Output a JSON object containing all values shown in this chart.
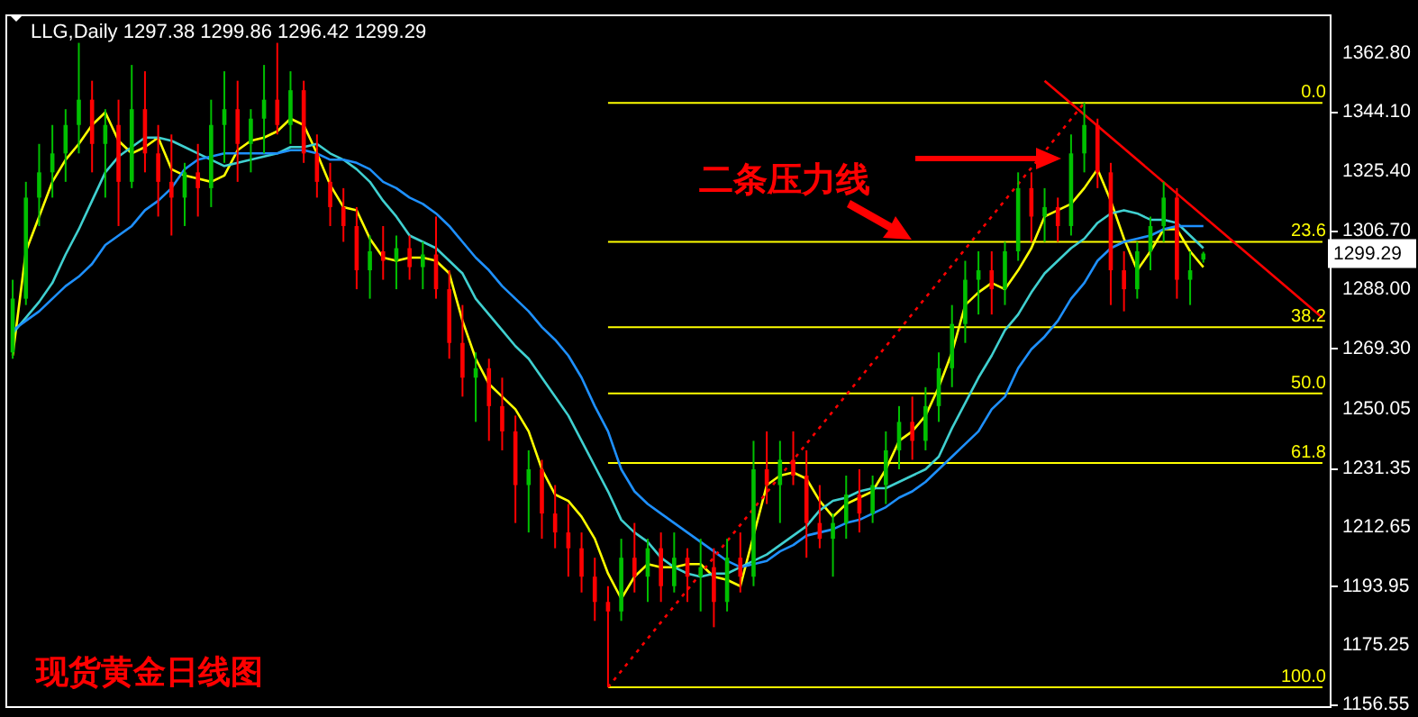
{
  "chart_data": {
    "type": "candlestick",
    "title": "LLG,Daily 1297.38 1299.86 1296.42 1299.29",
    "categories": [
      null,
      null,
      null,
      null,
      null,
      null,
      null,
      null,
      null,
      null,
      null,
      null,
      null,
      null,
      null,
      null,
      null,
      null,
      null,
      null,
      null,
      null,
      null,
      null,
      null,
      null,
      null,
      null,
      null,
      null,
      null,
      null,
      null,
      null,
      null,
      null,
      null,
      null,
      null,
      null,
      null,
      null,
      null,
      null,
      null,
      null,
      null,
      null,
      null,
      null,
      null,
      null,
      null,
      null,
      null,
      null,
      null,
      null,
      null,
      null,
      null,
      null,
      null,
      null,
      null,
      null,
      null,
      null,
      null,
      null,
      null,
      null,
      null,
      null,
      null,
      null,
      null,
      null,
      null,
      null,
      null,
      null,
      null,
      null,
      null,
      null,
      null,
      null,
      null,
      null,
      null,
      null,
      null,
      null,
      null,
      null,
      null,
      null,
      null,
      null
    ],
    "ohlc": [
      [
        1268,
        1291,
        1266,
        1285
      ],
      [
        1285,
        1322,
        1283,
        1317
      ],
      [
        1317,
        1334,
        1308,
        1325
      ],
      [
        1325,
        1340,
        1317,
        1331
      ],
      [
        1331,
        1345,
        1322,
        1340
      ],
      [
        1340,
        1366,
        1331,
        1348
      ],
      [
        1348,
        1354,
        1325,
        1334
      ],
      [
        1334,
        1345,
        1317,
        1340
      ],
      [
        1340,
        1348,
        1308,
        1322
      ],
      [
        1322,
        1359,
        1320,
        1345
      ],
      [
        1345,
        1357,
        1325,
        1331
      ],
      [
        1331,
        1340,
        1311,
        1322
      ],
      [
        1322,
        1337,
        1305,
        1317
      ],
      [
        1317,
        1328,
        1308,
        1325
      ],
      [
        1325,
        1334,
        1311,
        1320
      ],
      [
        1320,
        1348,
        1314,
        1340
      ],
      [
        1340,
        1357,
        1328,
        1345
      ],
      [
        1345,
        1354,
        1322,
        1334
      ],
      [
        1334,
        1345,
        1325,
        1342
      ],
      [
        1342,
        1359,
        1331,
        1348
      ],
      [
        1348,
        1366,
        1337,
        1340
      ],
      [
        1340,
        1357,
        1334,
        1351
      ],
      [
        1351,
        1354,
        1328,
        1331
      ],
      [
        1331,
        1337,
        1317,
        1322
      ],
      [
        1322,
        1328,
        1308,
        1314
      ],
      [
        1314,
        1320,
        1303,
        1308
      ],
      [
        1308,
        1314,
        1288,
        1294
      ],
      [
        1294,
        1305,
        1285,
        1300
      ],
      [
        1300,
        1308,
        1291,
        1297
      ],
      [
        1297,
        1305,
        1288,
        1301
      ],
      [
        1301,
        1305,
        1291,
        1295
      ],
      [
        1295,
        1303,
        1288,
        1299
      ],
      [
        1299,
        1311,
        1285,
        1288
      ],
      [
        1288,
        1294,
        1266,
        1271
      ],
      [
        1271,
        1283,
        1254,
        1260
      ],
      [
        1260,
        1268,
        1246,
        1263
      ],
      [
        1263,
        1266,
        1240,
        1251
      ],
      [
        1251,
        1260,
        1237,
        1243
      ],
      [
        1243,
        1248,
        1214,
        1226
      ],
      [
        1226,
        1237,
        1211,
        1231
      ],
      [
        1231,
        1234,
        1209,
        1217
      ],
      [
        1217,
        1226,
        1206,
        1211
      ],
      [
        1211,
        1220,
        1197,
        1206
      ],
      [
        1206,
        1211,
        1192,
        1197
      ],
      [
        1197,
        1203,
        1183,
        1189
      ],
      [
        1189,
        1194,
        1162,
        1186
      ],
      [
        1186,
        1209,
        1183,
        1203
      ],
      [
        1203,
        1214,
        1192,
        1197
      ],
      [
        1197,
        1209,
        1189,
        1206
      ],
      [
        1206,
        1211,
        1189,
        1194
      ],
      [
        1194,
        1211,
        1192,
        1203
      ],
      [
        1203,
        1206,
        1189,
        1197
      ],
      [
        1197,
        1209,
        1186,
        1200
      ],
      [
        1200,
        1206,
        1181,
        1189
      ],
      [
        1189,
        1209,
        1186,
        1203
      ],
      [
        1203,
        1211,
        1192,
        1197
      ],
      [
        1197,
        1240,
        1194,
        1231
      ],
      [
        1231,
        1243,
        1220,
        1226
      ],
      [
        1226,
        1240,
        1214,
        1234
      ],
      [
        1234,
        1243,
        1226,
        1229
      ],
      [
        1229,
        1237,
        1203,
        1214
      ],
      [
        1214,
        1226,
        1206,
        1209
      ],
      [
        1209,
        1217,
        1197,
        1214
      ],
      [
        1214,
        1229,
        1209,
        1223
      ],
      [
        1223,
        1231,
        1211,
        1217
      ],
      [
        1217,
        1229,
        1214,
        1226
      ],
      [
        1226,
        1243,
        1220,
        1237
      ],
      [
        1237,
        1251,
        1231,
        1246
      ],
      [
        1246,
        1254,
        1234,
        1240
      ],
      [
        1240,
        1257,
        1237,
        1251
      ],
      [
        1251,
        1268,
        1246,
        1263
      ],
      [
        1263,
        1283,
        1257,
        1277
      ],
      [
        1277,
        1297,
        1271,
        1291
      ],
      [
        1291,
        1300,
        1280,
        1294
      ],
      [
        1294,
        1300,
        1280,
        1288
      ],
      [
        1288,
        1303,
        1283,
        1300
      ],
      [
        1300,
        1325,
        1297,
        1320
      ],
      [
        1320,
        1325,
        1303,
        1311
      ],
      [
        1311,
        1320,
        1303,
        1314
      ],
      [
        1314,
        1317,
        1303,
        1308
      ],
      [
        1308,
        1337,
        1305,
        1331
      ],
      [
        1331,
        1347,
        1325,
        1340
      ],
      [
        1340,
        1342,
        1320,
        1325
      ],
      [
        1325,
        1328,
        1283,
        1294
      ],
      [
        1294,
        1300,
        1281,
        1288
      ],
      [
        1288,
        1303,
        1285,
        1300
      ],
      [
        1300,
        1311,
        1294,
        1308
      ],
      [
        1308,
        1322,
        1303,
        1317
      ],
      [
        1317,
        1320,
        1285,
        1291
      ],
      [
        1291,
        1300,
        1283,
        1294
      ],
      [
        1297.38,
        1299.86,
        1296.42,
        1299.29
      ],
      null,
      null,
      null,
      null,
      null,
      null,
      null,
      null,
      null
    ],
    "colors": [
      "#00c000",
      "#00c000",
      "#00c000",
      "#00c000",
      "#00c000",
      "#00c000",
      "#ff0000",
      "#00c000",
      "#ff0000",
      "#00c000",
      "#ff0000",
      "#ff0000",
      "#ff0000",
      "#00c000",
      "#ff0000",
      "#00c000",
      "#00c000",
      "#ff0000",
      "#00c000",
      "#00c000",
      "#ff0000",
      "#00c000",
      "#ff0000",
      "#ff0000",
      "#ff0000",
      "#ff0000",
      "#ff0000",
      "#00c000",
      "#ff0000",
      "#00c000",
      "#ff0000",
      "#00c000",
      "#ff0000",
      "#ff0000",
      "#ff0000",
      "#00c000",
      "#ff0000",
      "#ff0000",
      "#ff0000",
      "#00c000",
      "#ff0000",
      "#ff0000",
      "#ff0000",
      "#ff0000",
      "#ff0000",
      "#ff0000",
      "#00c000",
      "#ff0000",
      "#00c000",
      "#ff0000",
      "#00c000",
      "#ff0000",
      "#00c000",
      "#ff0000",
      "#00c000",
      "#ff0000",
      "#00c000",
      "#ff0000",
      "#00c000",
      "#ff0000",
      "#ff0000",
      "#ff0000",
      "#00c000",
      "#00c000",
      "#ff0000",
      "#00c000",
      "#00c000",
      "#00c000",
      "#ff0000",
      "#00c000",
      "#00c000",
      "#00c000",
      "#00c000",
      "#00c000",
      "#ff0000",
      "#00c000",
      "#00c000",
      "#ff0000",
      "#00c000",
      "#ff0000",
      "#00c000",
      "#00c000",
      "#ff0000",
      "#ff0000",
      "#ff0000",
      "#00c000",
      "#00c000",
      "#00c000",
      "#ff0000",
      "#00c000",
      "#00c000",
      null,
      null,
      null,
      null,
      null,
      null,
      null,
      null,
      null
    ],
    "series": [
      {
        "type": "line",
        "color": "#ffff00",
        "values": [
          1267,
          1300,
          1311,
          1322,
          1329,
          1334,
          1340,
          1344,
          1335,
          1331,
          1333,
          1336,
          1326,
          1324,
          1323,
          1322,
          1324,
          1332,
          1335,
          1336,
          1338,
          1342,
          1340,
          1331,
          1321,
          1314,
          1313,
          1304,
          1298,
          1297,
          1298,
          1298,
          1297,
          1293,
          1278,
          1266,
          1258,
          1254,
          1250,
          1243,
          1231,
          1223,
          1221,
          1216,
          1209,
          1198,
          1190,
          1197,
          1201,
          1200,
          1200,
          1201,
          1201,
          1197,
          1196,
          1194,
          1210,
          1226,
          1229,
          1230,
          1228,
          1221,
          1216,
          1220,
          1222,
          1224,
          1231,
          1240,
          1243,
          1248,
          1257,
          1268,
          1283,
          1287,
          1290,
          1288,
          1294,
          1301,
          1311,
          1313,
          1315,
          1320,
          1326,
          1316,
          1304,
          1294,
          1300,
          1307,
          1307,
          1300,
          1295,
          null,
          null,
          null,
          null,
          null,
          null,
          null,
          null,
          null
        ]
      },
      {
        "type": "line",
        "color": "#40d0d0",
        "values": [
          1274,
          1279,
          1284,
          1290,
          1299,
          1307,
          1316,
          1325,
          1330,
          1333,
          1336,
          1336,
          1335,
          1333,
          1331,
          1329,
          1327,
          1328,
          1329,
          1330,
          1331,
          1333,
          1333,
          1334,
          1331,
          1329,
          1326,
          1322,
          1316,
          1311,
          1305,
          1303,
          1301,
          1297,
          1293,
          1285,
          1280,
          1275,
          1270,
          1266,
          1260,
          1254,
          1248,
          1240,
          1232,
          1224,
          1215,
          1211,
          1208,
          1203,
          1200,
          1198,
          1197,
          1198,
          1198,
          1200,
          1202,
          1204,
          1207,
          1210,
          1213,
          1218,
          1221,
          1222,
          1224,
          1225,
          1225,
          1227,
          1229,
          1231,
          1235,
          1244,
          1252,
          1260,
          1267,
          1275,
          1280,
          1287,
          1293,
          1297,
          1301,
          1304,
          1309,
          1312,
          1313,
          1312,
          1310,
          1310,
          1309,
          1305,
          1301,
          null,
          null,
          null,
          null,
          null,
          null,
          null,
          null,
          null
        ]
      },
      {
        "type": "line",
        "color": "#1e90ff",
        "values": [
          1275,
          1278,
          1281,
          1285,
          1289,
          1292,
          1296,
          1302,
          1305,
          1308,
          1313,
          1316,
          1320,
          1326,
          1329,
          1330,
          1331,
          1331,
          1331,
          1331,
          1331,
          1332,
          1332,
          1331,
          1329,
          1329,
          1328,
          1326,
          1322,
          1320,
          1317,
          1315,
          1312,
          1308,
          1303,
          1298,
          1294,
          1289,
          1285,
          1281,
          1276,
          1272,
          1267,
          1260,
          1251,
          1243,
          1231,
          1224,
          1220,
          1217,
          1214,
          1211,
          1208,
          1205,
          1202,
          1200,
          1201,
          1202,
          1205,
          1207,
          1210,
          1211,
          1212,
          1214,
          1215,
          1217,
          1219,
          1222,
          1224,
          1227,
          1231,
          1235,
          1239,
          1243,
          1250,
          1254,
          1263,
          1269,
          1273,
          1278,
          1285,
          1290,
          1297,
          1301,
          1303,
          1304,
          1305,
          1307,
          1308,
          1308,
          1308,
          null,
          null,
          null,
          null,
          null,
          null,
          null,
          null,
          null
        ]
      },
      {
        "type": "line",
        "color": "#ff0000",
        "line_style": "dotted",
        "values": [
          null,
          null,
          null,
          null,
          null,
          null,
          null,
          null,
          null,
          null,
          null,
          null,
          null,
          null,
          null,
          null,
          null,
          null,
          null,
          null,
          null,
          null,
          null,
          null,
          null,
          null,
          null,
          null,
          null,
          null,
          null,
          null,
          null,
          null,
          null,
          null,
          null,
          null,
          null,
          null,
          null,
          null,
          null,
          null,
          null,
          1162,
          null,
          null,
          null,
          null,
          null,
          null,
          null,
          null,
          null,
          null,
          null,
          null,
          null,
          null,
          null,
          null,
          null,
          null,
          null,
          null,
          null,
          null,
          null,
          null,
          null,
          null,
          null,
          null,
          null,
          null,
          null,
          null,
          null,
          null,
          null,
          1347,
          null,
          null,
          null,
          null,
          null,
          null,
          null,
          null,
          null,
          null,
          null,
          null,
          null,
          null,
          null,
          null,
          null,
          null
        ]
      },
      {
        "type": "line",
        "color": "#ff0000",
        "values": [
          null,
          null,
          null,
          null,
          null,
          null,
          null,
          null,
          null,
          null,
          null,
          null,
          null,
          null,
          null,
          null,
          null,
          null,
          null,
          null,
          null,
          null,
          null,
          null,
          null,
          null,
          null,
          null,
          null,
          null,
          null,
          null,
          null,
          null,
          null,
          null,
          null,
          null,
          null,
          null,
          null,
          null,
          null,
          null,
          null,
          null,
          null,
          null,
          null,
          null,
          null,
          null,
          null,
          null,
          null,
          null,
          null,
          null,
          null,
          null,
          null,
          null,
          null,
          null,
          null,
          null,
          null,
          null,
          null,
          null,
          null,
          null,
          null,
          null,
          null,
          null,
          null,
          null,
          1354,
          null,
          null,
          null,
          null,
          null,
          null,
          null,
          null,
          null,
          null,
          null,
          null,
          null,
          null,
          null,
          null,
          null,
          null,
          null,
          null,
          1279
        ]
      }
    ],
    "ylim": [
      1156,
      1375
    ],
    "yticks": [
      {
        "value": 1362.8,
        "label": "1362.80"
      },
      {
        "value": 1344.1,
        "label": "1344.10"
      },
      {
        "value": 1325.4,
        "label": "1325.40"
      },
      {
        "value": 1306.7,
        "label": "1306.70"
      },
      {
        "value": 1288,
        "label": "1288.00"
      },
      {
        "value": 1269.3,
        "label": "1269.30"
      },
      1250.05,
      1231.35,
      1212.65,
      1193.95,
      1175.25,
      1156.55
    ],
    "ref_lines": [
      {
        "axis": "y",
        "value": 1347,
        "color": "#ffff00"
      },
      {
        "axis": "y",
        "value": 1303,
        "color": "#ffff00"
      },
      {
        "axis": "y",
        "value": 1276,
        "color": "#ffff00"
      },
      {
        "axis": "y",
        "value": 1255,
        "color": "#ffff00"
      },
      {
        "axis": "y",
        "value": 1233,
        "color": "#ffff00"
      },
      {
        "axis": "y",
        "value": 1162,
        "color": "#ffff00"
      }
    ],
    "annotations": [
      "二条压力线",
      "现货黄金日线图",
      "1299.29",
      {
        "text": "0.0",
        "y": 1347
      },
      {
        "text": "23.6",
        "y": 1303
      },
      {
        "text": "38.2",
        "y": 1276
      },
      {
        "text": "50.0",
        "y": 1255
      },
      {
        "text": "61.8",
        "y": 1233
      },
      {
        "text": "100.0",
        "y": 1162
      }
    ],
    "tick_labels": "y"
  }
}
